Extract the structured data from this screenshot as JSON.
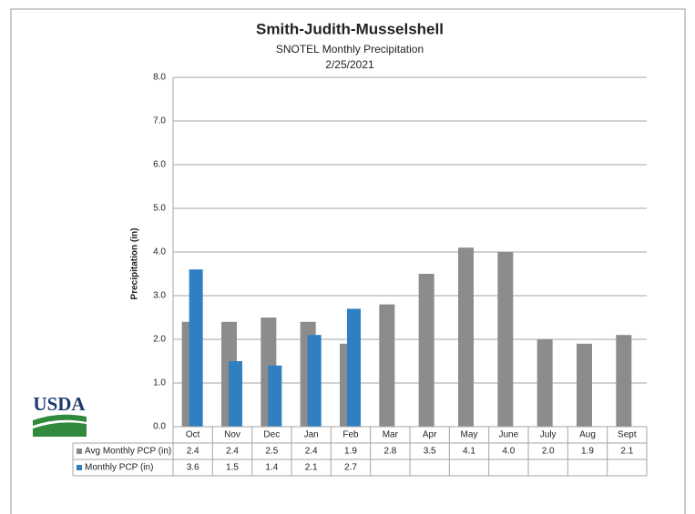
{
  "logo_text": "USDA",
  "chart_data": {
    "type": "bar",
    "title": "Smith-Judith-Musselshell",
    "subtitle": "SNOTEL Monthly Precipitation",
    "date": "2/25/2021",
    "ylabel": "Precipitation (in)",
    "categories": [
      "Oct",
      "Nov",
      "Dec",
      "Jan",
      "Feb",
      "Mar",
      "Apr",
      "May",
      "June",
      "July",
      "Aug",
      "Sept"
    ],
    "series": [
      {
        "name": "Avg Monthly PCP (in)",
        "color": "#8c8c8c",
        "values": [
          2.4,
          2.4,
          2.5,
          2.4,
          1.9,
          2.8,
          3.5,
          4.1,
          4.0,
          2.0,
          1.9,
          2.1
        ],
        "value_labels": [
          "2.4",
          "2.4",
          "2.5",
          "2.4",
          "1.9",
          "2.8",
          "3.5",
          "4.1",
          "4.0",
          "2.0",
          "1.9",
          "2.1"
        ]
      },
      {
        "name": "Monthly PCP (in)",
        "color": "#2f7fc1",
        "values": [
          3.6,
          1.5,
          1.4,
          2.1,
          2.7,
          null,
          null,
          null,
          null,
          null,
          null,
          null
        ],
        "value_labels": [
          "3.6",
          "1.5",
          "1.4",
          "2.1",
          "2.7",
          null,
          null,
          null,
          null,
          null,
          null,
          null
        ]
      }
    ],
    "ylim": [
      0,
      8
    ],
    "yticks": [
      {
        "value": 0,
        "label": "0.0"
      },
      {
        "value": 1,
        "label": "1.0"
      },
      {
        "value": 2,
        "label": "2.0"
      },
      {
        "value": 3,
        "label": "3.0"
      },
      {
        "value": 4,
        "label": "4.0"
      },
      {
        "value": 5,
        "label": "5.0"
      },
      {
        "value": 6,
        "label": "6.0"
      },
      {
        "value": 7,
        "label": "7.0"
      },
      {
        "value": 8,
        "label": "8.0"
      }
    ],
    "grid": true
  }
}
